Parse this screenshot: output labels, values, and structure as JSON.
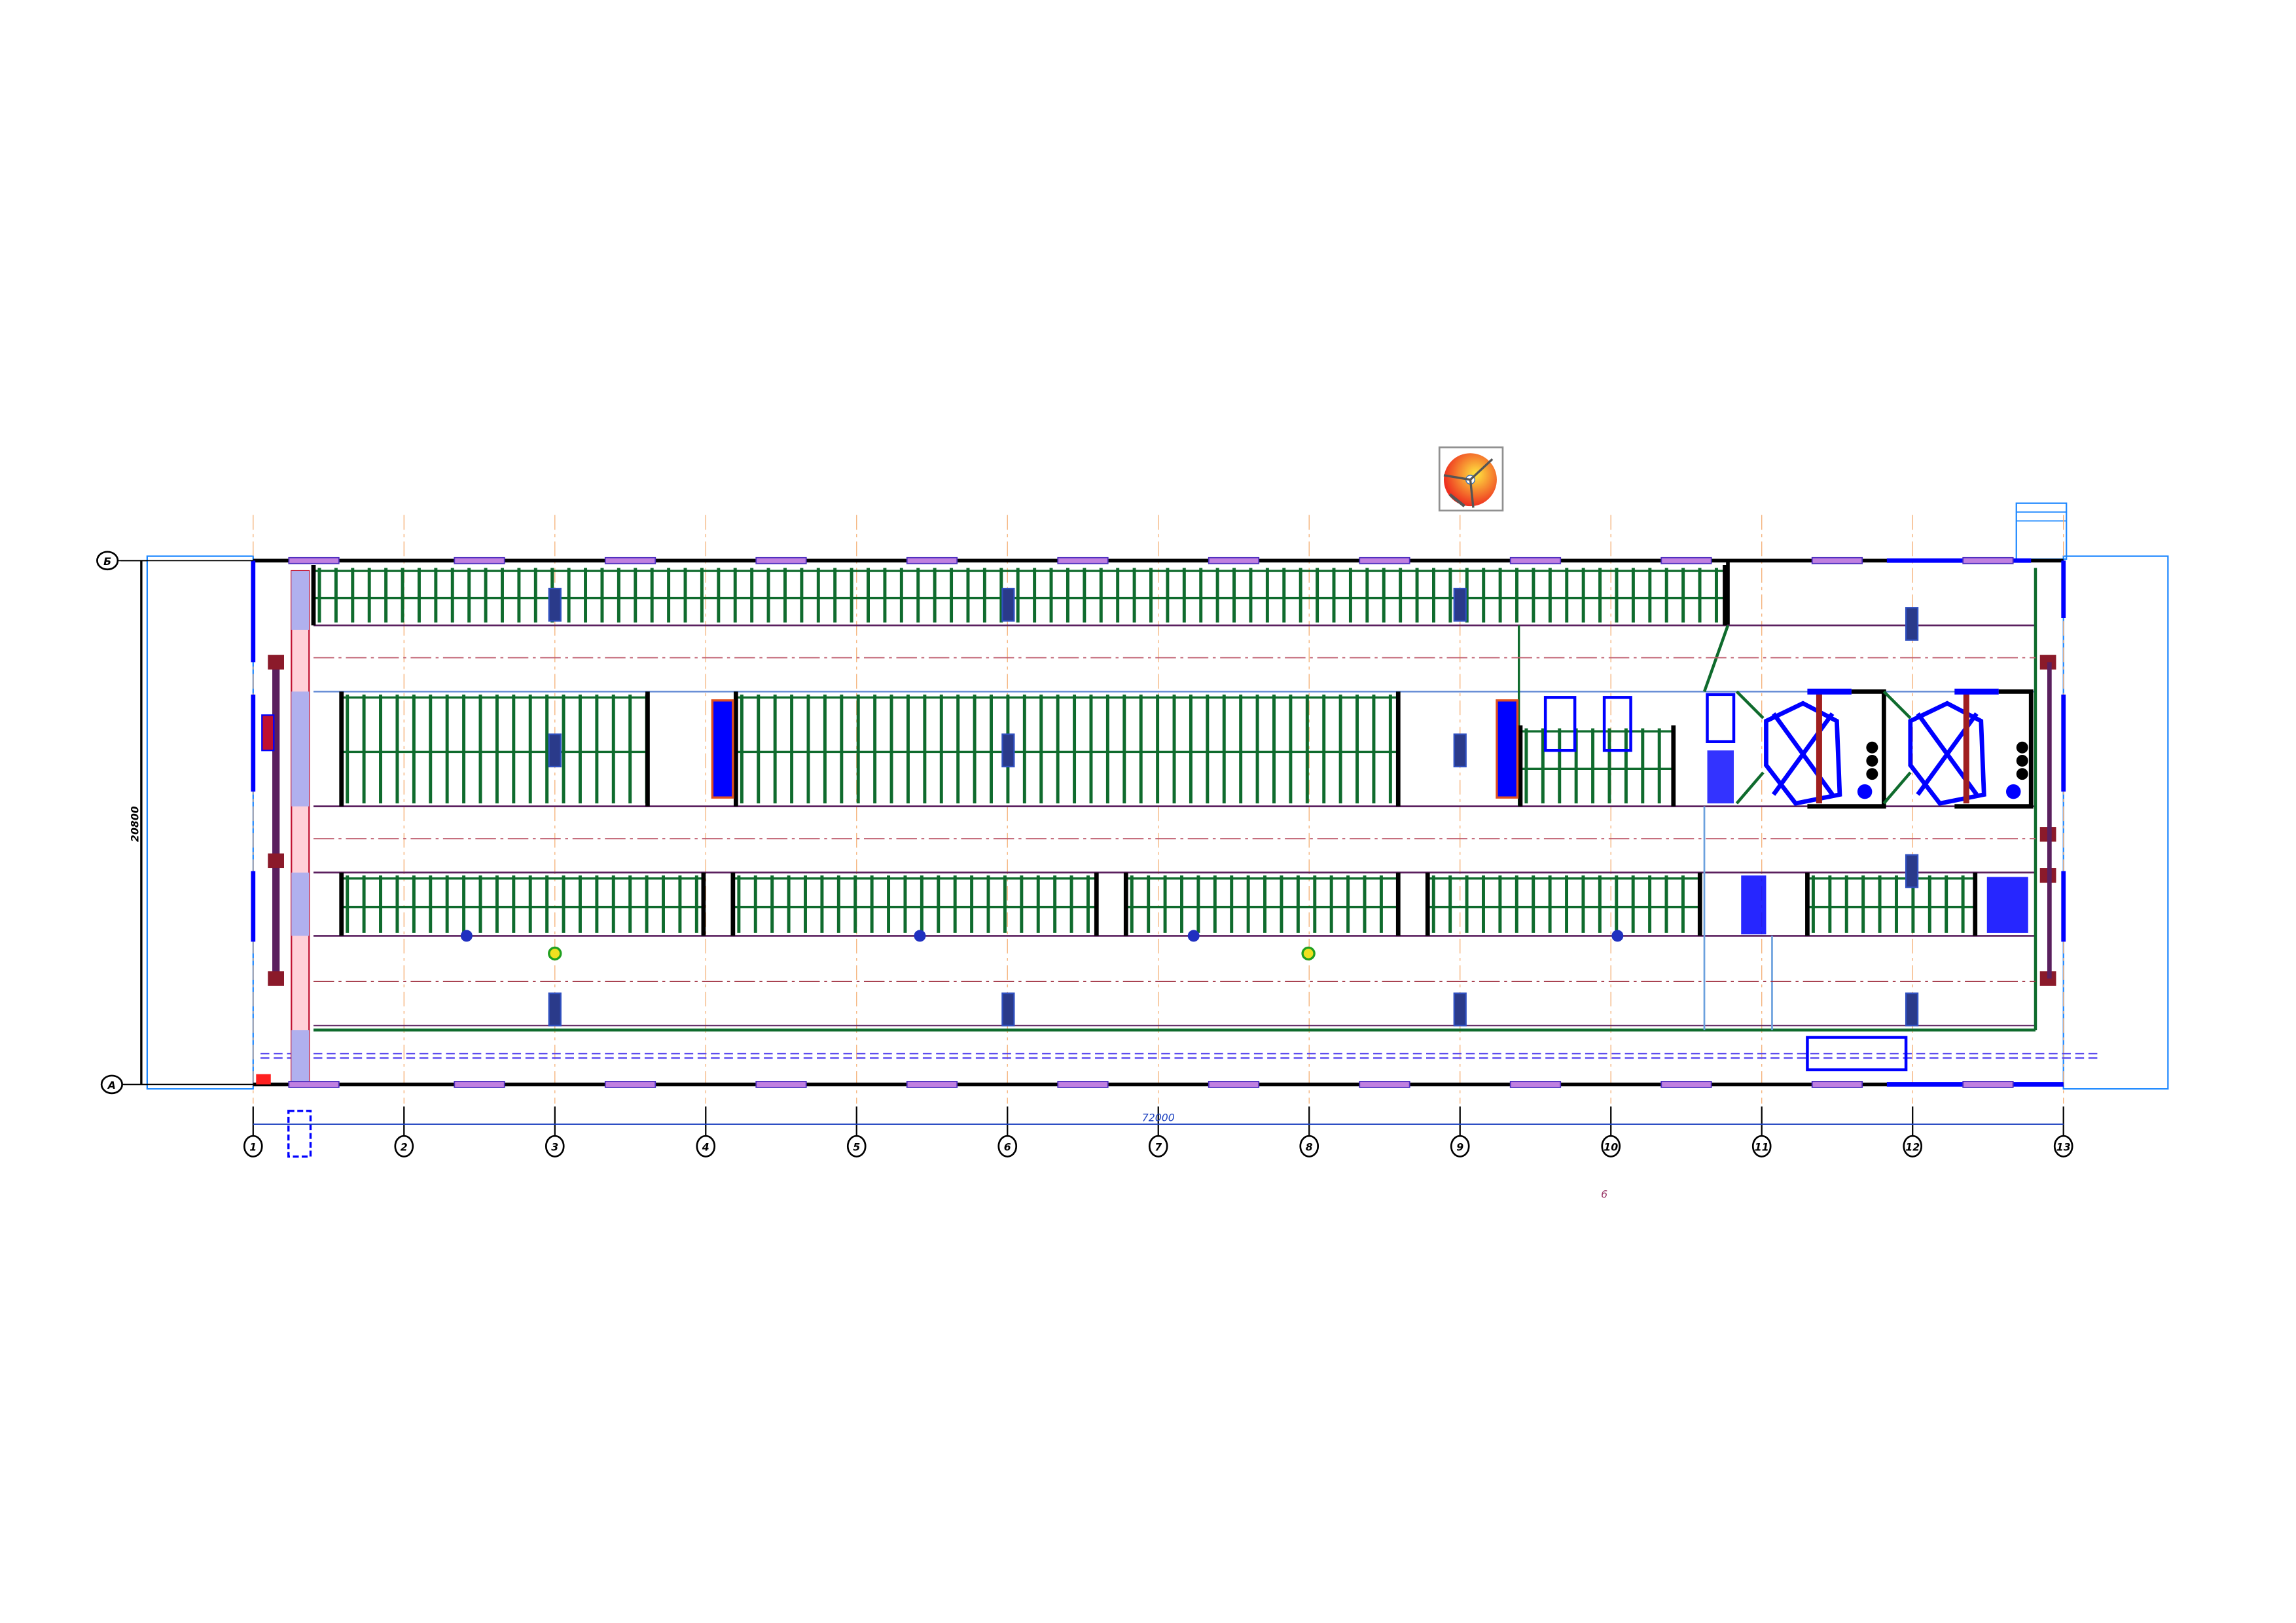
{
  "drawing": {
    "type": "floor-plan",
    "sheet_number": "6",
    "dimensions": {
      "overall_length": "72000",
      "overall_width": "20800"
    },
    "column_axes": [
      "1",
      "2",
      "3",
      "4",
      "5",
      "6",
      "7",
      "8",
      "9",
      "10",
      "11",
      "12",
      "13"
    ],
    "row_axes": [
      "Б",
      "А"
    ],
    "logo": "ring-logo-icon"
  },
  "colors": {
    "wall": "#000000",
    "stall": "#0f6b2d",
    "equipment": "#0000ff",
    "partition": "#5a1f5e",
    "axis_line": "#f5b27a",
    "centerline": "#c06070",
    "feed_passage": "#e0303a",
    "outline": "#1e88ff",
    "dimension": "#1a3fbf",
    "sheet_number": "#9b3b6a"
  }
}
